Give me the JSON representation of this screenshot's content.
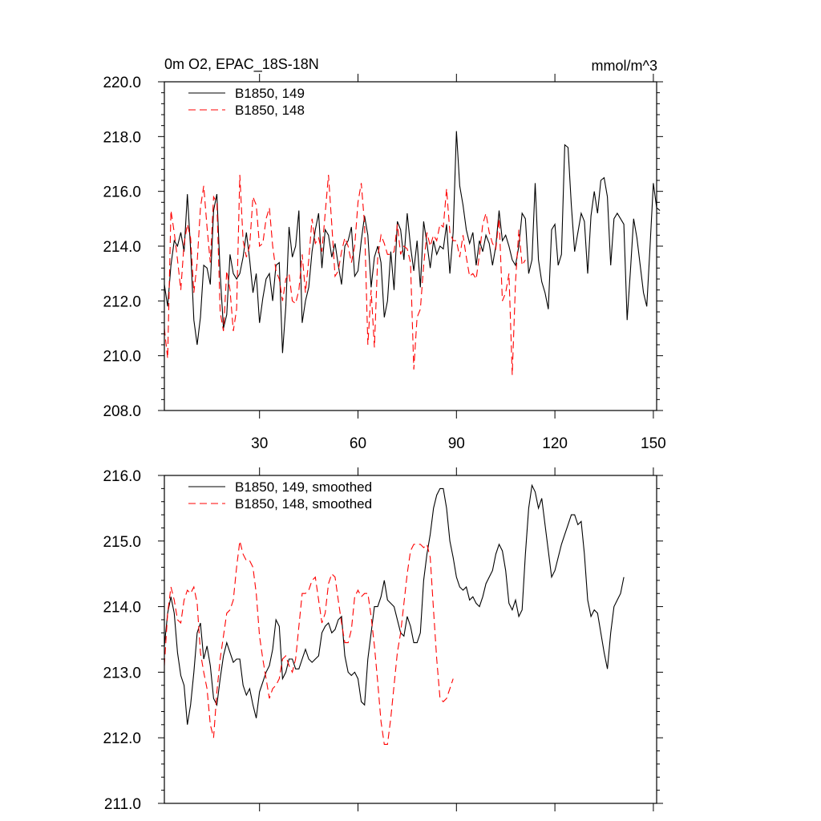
{
  "figure": {
    "title_left": "0m O2, EPAC_18S-18N",
    "units": "mmol/m^3"
  },
  "colors": {
    "axis": "#000000",
    "series_149": "#000000",
    "series_148": "#ff0000"
  },
  "chart_data": [
    {
      "type": "line",
      "title": "0m O2, EPAC_18S-18N",
      "units": "mmol/m^3",
      "xlim": [
        1,
        151
      ],
      "ylim": [
        208,
        220
      ],
      "xticks": [
        30,
        60,
        90,
        120,
        150
      ],
      "xtick_labels": [
        "30",
        "60",
        "90",
        "120",
        "150"
      ],
      "yticks": [
        208,
        210,
        212,
        214,
        216,
        218,
        220
      ],
      "ytick_labels": [
        "208.0",
        "210.0",
        "212.0",
        "214.0",
        "216.0",
        "218.0",
        "220.0"
      ],
      "legend_position": "top-left",
      "series": [
        {
          "name": "B1850, 149",
          "style": "solid",
          "color": "#000000",
          "x_start": 1,
          "values": [
            212.6,
            211.8,
            213.3,
            214.2,
            214.0,
            214.5,
            213.8,
            215.9,
            213.9,
            211.3,
            210.4,
            211.4,
            213.3,
            213.2,
            212.6,
            215.3,
            215.9,
            213.0,
            211.0,
            211.5,
            213.7,
            213.0,
            212.8,
            213.0,
            213.6,
            214.5,
            213.5,
            212.3,
            213.0,
            211.2,
            212.1,
            212.8,
            213.0,
            212.0,
            213.3,
            213.4,
            210.1,
            211.8,
            214.7,
            213.6,
            214.0,
            215.3,
            211.2,
            212.0,
            212.5,
            213.8,
            214.6,
            215.2,
            213.2,
            214.6,
            214.4,
            213.6,
            214.1,
            213.3,
            212.6,
            214.0,
            214.2,
            214.7,
            212.9,
            213.1,
            214.2,
            215.1,
            214.4,
            212.5,
            213.6,
            214.0,
            213.4,
            211.4,
            212.0,
            213.8,
            212.4,
            214.9,
            214.6,
            213.5,
            215.2,
            214.0,
            213.1,
            214.2,
            212.5,
            214.9,
            214.1,
            213.2,
            214.2,
            213.7,
            214.0,
            213.9,
            214.8,
            213.0,
            214.5,
            218.2,
            216.2,
            215.5,
            214.6,
            214.1,
            214.5,
            213.3,
            214.2,
            213.8,
            214.4,
            214.1,
            213.3,
            214.0,
            215.3,
            214.2,
            214.4,
            214.0,
            213.5,
            213.3,
            214.0,
            215.2,
            215.0,
            213.0,
            213.5,
            216.3,
            213.5,
            212.7,
            212.3,
            211.7,
            214.6,
            214.8,
            213.3,
            213.7,
            217.7,
            217.6,
            215.5,
            213.8,
            214.5,
            215.2,
            214.9,
            213.0,
            215.1,
            216.0,
            215.2,
            216.4,
            216.5,
            215.8,
            213.3,
            215.0,
            215.2,
            215.0,
            214.8,
            211.3,
            213.1,
            215.0,
            214.3,
            213.3,
            212.3,
            211.8,
            214.0,
            216.3,
            215.4,
            215.3
          ]
        },
        {
          "name": "B1850, 148",
          "style": "dashed",
          "color": "#ff0000",
          "x_start": 1,
          "values": [
            211.0,
            209.9,
            215.3,
            214.5,
            213.5,
            212.4,
            214.1,
            214.8,
            214.3,
            212.3,
            213.4,
            215.4,
            216.2,
            214.7,
            213.4,
            215.8,
            215.6,
            211.6,
            210.9,
            213.1,
            212.4,
            210.9,
            211.7,
            216.6,
            214.2,
            213.6,
            214.0,
            215.8,
            215.5,
            214.0,
            214.1,
            215.0,
            215.4,
            214.0,
            213.1,
            212.8,
            212.0,
            212.8,
            213.0,
            212.0,
            211.9,
            212.4,
            213.7,
            212.3,
            213.5,
            215.0,
            214.1,
            214.3,
            213.8,
            215.2,
            216.6,
            214.8,
            212.9,
            213.1,
            213.8,
            214.3,
            214.0,
            213.4,
            214.0,
            215.6,
            216.3,
            214.8,
            210.4,
            212.4,
            210.3,
            213.6,
            214.4,
            214.1,
            213.7,
            213.7,
            213.8,
            214.8,
            213.7,
            214.0,
            213.9,
            213.4,
            209.5,
            211.4,
            211.7,
            213.3,
            214.5,
            214.0,
            214.4,
            214.2,
            214.8,
            214.7,
            216.1,
            214.5,
            214.2,
            214.2,
            213.6,
            214.4,
            213.6,
            212.9,
            213.0,
            212.8,
            213.7,
            214.8,
            215.2,
            214.5,
            214.1,
            213.9,
            215.0,
            212.0,
            212.3,
            213.0,
            209.3,
            212.7,
            214.6,
            213.3,
            213.5
          ]
        }
      ]
    },
    {
      "type": "line",
      "xlim": [
        1,
        151
      ],
      "ylim": [
        211,
        216
      ],
      "xticks": [
        30,
        60,
        90,
        120,
        150
      ],
      "yticks": [
        211,
        212,
        213,
        214,
        215,
        216
      ],
      "ytick_labels": [
        "211.0",
        "212.0",
        "213.0",
        "214.0",
        "215.0",
        "216.0"
      ],
      "legend_position": "top-left",
      "series": [
        {
          "name": "B1850, 149, smoothed",
          "style": "solid",
          "color": "#000000",
          "x_start": 1,
          "values": [
            213.4,
            213.9,
            214.15,
            213.9,
            213.3,
            212.95,
            212.8,
            212.2,
            212.5,
            213.0,
            213.6,
            213.75,
            213.2,
            213.4,
            213.1,
            212.6,
            212.5,
            212.9,
            213.25,
            213.45,
            213.3,
            213.15,
            213.2,
            213.2,
            212.8,
            212.65,
            212.75,
            212.5,
            212.3,
            212.7,
            212.85,
            213.0,
            213.1,
            213.35,
            213.8,
            213.7,
            212.9,
            213.0,
            213.2,
            213.2,
            213.05,
            213.05,
            213.2,
            213.35,
            213.2,
            213.15,
            213.2,
            213.25,
            213.6,
            213.7,
            213.75,
            213.6,
            213.65,
            213.8,
            213.85,
            213.25,
            213.0,
            212.95,
            213.0,
            212.9,
            212.55,
            212.5,
            213.2,
            213.6,
            214.0,
            214.0,
            214.15,
            214.4,
            214.1,
            214.05,
            214.0,
            213.8,
            213.6,
            213.55,
            213.85,
            213.7,
            213.45,
            213.45,
            213.6,
            214.4,
            214.8,
            215.1,
            215.5,
            215.7,
            215.8,
            215.8,
            215.5,
            215.0,
            214.75,
            214.45,
            214.3,
            214.25,
            214.3,
            214.1,
            214.15,
            214.05,
            214.0,
            214.15,
            214.35,
            214.45,
            214.55,
            214.8,
            214.95,
            214.85,
            214.55,
            214.05,
            213.95,
            214.1,
            213.85,
            213.95,
            214.8,
            215.5,
            215.85,
            215.75,
            215.5,
            215.65,
            215.25,
            214.85,
            214.45,
            214.55,
            214.75,
            214.95,
            215.1,
            215.25,
            215.4,
            215.4,
            215.25,
            215.3,
            214.8,
            214.1,
            213.85,
            213.95,
            213.9,
            213.6,
            213.3,
            213.05,
            213.6,
            214.0,
            214.1,
            214.2,
            214.45
          ]
        },
        {
          "name": "B1850, 148, smoothed",
          "style": "dashed",
          "color": "#ff0000",
          "x_start": 1,
          "values": [
            213.1,
            213.9,
            214.3,
            214.1,
            213.8,
            213.75,
            214.1,
            214.25,
            214.2,
            214.3,
            214.05,
            213.3,
            213.0,
            212.75,
            212.2,
            212.0,
            212.7,
            213.2,
            213.55,
            213.9,
            213.95,
            214.1,
            214.6,
            215.0,
            214.8,
            214.7,
            214.7,
            214.6,
            214.2,
            213.55,
            213.2,
            212.9,
            212.6,
            212.75,
            212.8,
            212.9,
            213.2,
            213.25,
            213.1,
            213.0,
            213.2,
            213.7,
            214.2,
            214.2,
            214.25,
            214.4,
            214.45,
            214.1,
            213.75,
            213.9,
            214.35,
            214.5,
            214.45,
            214.1,
            213.75,
            213.45,
            213.45,
            213.65,
            214.15,
            214.25,
            214.15,
            214.2,
            214.2,
            213.85,
            213.4,
            212.85,
            212.25,
            211.9,
            211.9,
            212.3,
            212.8,
            213.3,
            213.6,
            214.05,
            214.5,
            214.85,
            214.95,
            214.95,
            214.95,
            214.9,
            214.95,
            214.75,
            213.95,
            213.2,
            212.6,
            212.55,
            212.6,
            212.75,
            212.9
          ]
        }
      ]
    }
  ]
}
